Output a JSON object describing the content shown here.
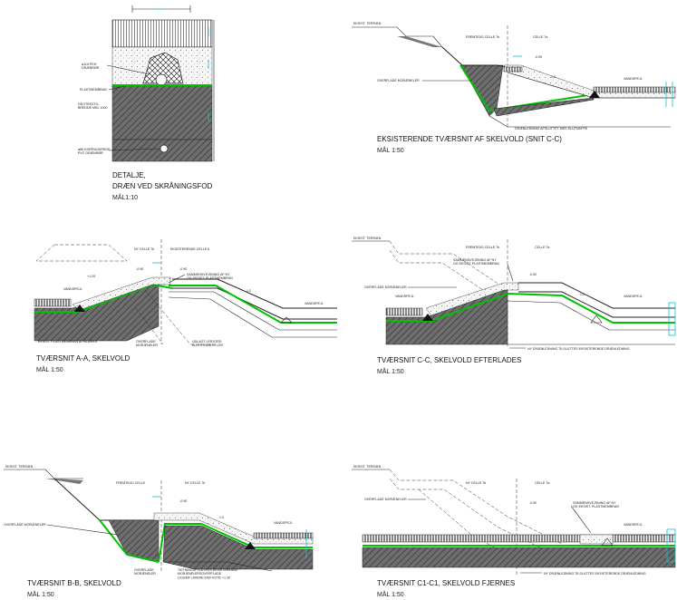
{
  "detail": {
    "caption_lines": [
      "DETALJE,",
      "DRÆN VED SKRÅNINGSFOD",
      "MÅL1:10"
    ],
    "labels": {
      "pe_drain": "ø110 PEH\nDRÆNRØR",
      "plastmembran": "PLASTMEMBRAN",
      "geotextil": "GEOTEKSTIL,\nBREDDE MIN. 1000",
      "korrugeret": "ø85 KORRUGEREDE\nPVC DRÆNRØR"
    }
  },
  "section_cc_existing": {
    "caption_lines": [
      "EKSISTERENDE TVÆRSNIT AF SKELVOLD (SNIT C-C)",
      "MÅL 1:50"
    ],
    "labels": {
      "eksist_terraen": "EKSIST. TERRÆN",
      "fremtidig_celle": "FREMTIDIG CELLE 7b",
      "celle": "CELLE 7a",
      "level": "-0.90",
      "slope": "1:2",
      "vandspejl": "VANDSPEJL",
      "overflade": "OVERFLADE MORÆNELER",
      "draenledning": "DRÆNLEDNING AFSLUTTET MED SLUTMUFFE"
    }
  },
  "section_aa": {
    "caption_lines": [
      "TVÆRSNIT A-A, SKELVOLD",
      "MÅL 1:50"
    ],
    "labels": {
      "ny_celle": "NY CELLE 7b",
      "eksisterende_celle": "EKSISTERENDE CELLE 6",
      "level1": "-0.90",
      "level2": "-0.90",
      "level3": "+1.20",
      "sammensvejsning": "SAMMENSVEJSNING AF NY\nOG EKSIST. PLASTMEMBRAN",
      "vandspejl1": "VANDSPEJL",
      "vandspejl2": "VANDSPEJL",
      "eksist_plast": "EKSIST. PLASTMEMBRAN AFSKÆRES",
      "overflade": "OVERFLADE\nMORÆNELER",
      "udlagt": "UDLAGT LERJORD\nELLER INDBYG LER",
      "slope": "1:2"
    }
  },
  "section_cc_after": {
    "caption_lines": [
      "TVÆRSNIT C-C, SKELVOLD EFTERLADES",
      "MÅL 1:50"
    ],
    "labels": {
      "eksist_terraen": "EKSIST. TERRÆN",
      "fremtidig_celle": "FREMTIDIG CELLE 7b",
      "celle": "CELLE 7a",
      "sammensvejsning": "SAMMENSVEJSNING AF NY\nOG EKSIST. PLASTMEMBRAN",
      "overflade": "OVERFLADE MORÆNELER",
      "vandspejl1": "VANDSPEJL",
      "vandspejl2": "VANDSPEJL",
      "level": "-0.90",
      "slope": "1:2",
      "drain": "NY DRÆNLEDNING TILSLUTTES EKSISTERENDE DRÆNLEDNING"
    }
  },
  "section_bb": {
    "caption_lines": [
      "TVÆRSNIT B-B, SKELVOLD",
      "MÅL 1:50"
    ],
    "labels": {
      "eksist_terraen": "EKSIST. TERRÆN",
      "fremtidig_celle": "FREMTIDIG CELLE",
      "ny_celle": "NY CELLE 7b",
      "overflade": "OVERFLADE MORÆNELER",
      "overflade2": "OVERFLADE\nMORÆNELER",
      "level": "-0.90",
      "slope": "1:2",
      "vandspejl": "VANDSPEJL",
      "tietning": "TIETNINGSFYLD HVIS EKSISTERENDE\nMORÆNELERSOVERFLADE\nLIGGER LAVERE END KOTE +1.30"
    }
  },
  "section_c1c1": {
    "caption_lines": [
      "TVÆRSNIT C1-C1, SKELVOLD FJERNES",
      "MÅL 1:50"
    ],
    "labels": {
      "eksist_terraen": "EKSIST. TERRÆN",
      "ny_celle": "NY CELLE 7b",
      "celle": "CELLE 7a",
      "overflade": "OVERFLADE MORÆNELER",
      "level": "-0.90",
      "sammensvejsning": "SAMMENSVEJSNING AF NY\nOG EKSIST. PLASTMEMBRAN",
      "vandspejl": "VANDSPEJL",
      "drain": "NY DRÆNLEDNING TILSLUTTES EKSISTERENDE DRÆNLEDNING"
    }
  },
  "colors": {
    "membrane": "#00c000",
    "dimension": "#00c8d8",
    "ink": "#222222"
  }
}
